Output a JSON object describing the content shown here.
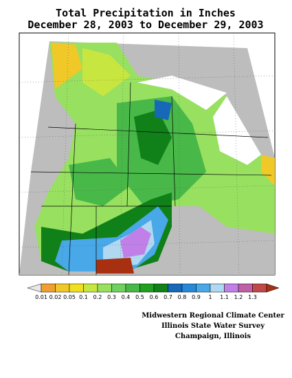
{
  "header": {
    "title": "Total Precipitation in Inches",
    "subtitle": "December 28, 2003 to December 29, 2003"
  },
  "legend": {
    "labels": [
      "0.01",
      "0.02",
      "0.05",
      "0.1",
      "0.2",
      "0.3",
      "0.4",
      "0.5",
      "0.6",
      "0.7",
      "0.8",
      "0.9",
      "1",
      "1.1",
      "1.2",
      "1.3"
    ],
    "colors": [
      "#e8e8e8",
      "#f0a030",
      "#f0c828",
      "#f0e020",
      "#c8e640",
      "#98e060",
      "#70d060",
      "#48b848",
      "#20a020",
      "#108018",
      "#1868b8",
      "#2888d8",
      "#48a8e8",
      "#b0d8f0",
      "#c080e8",
      "#c060a8",
      "#c04848",
      "#a83010"
    ]
  },
  "footer": {
    "lines": [
      "Midwestern Regional Climate Center",
      "Illinois State Water Survey",
      "Champaign, Illinois"
    ]
  }
}
